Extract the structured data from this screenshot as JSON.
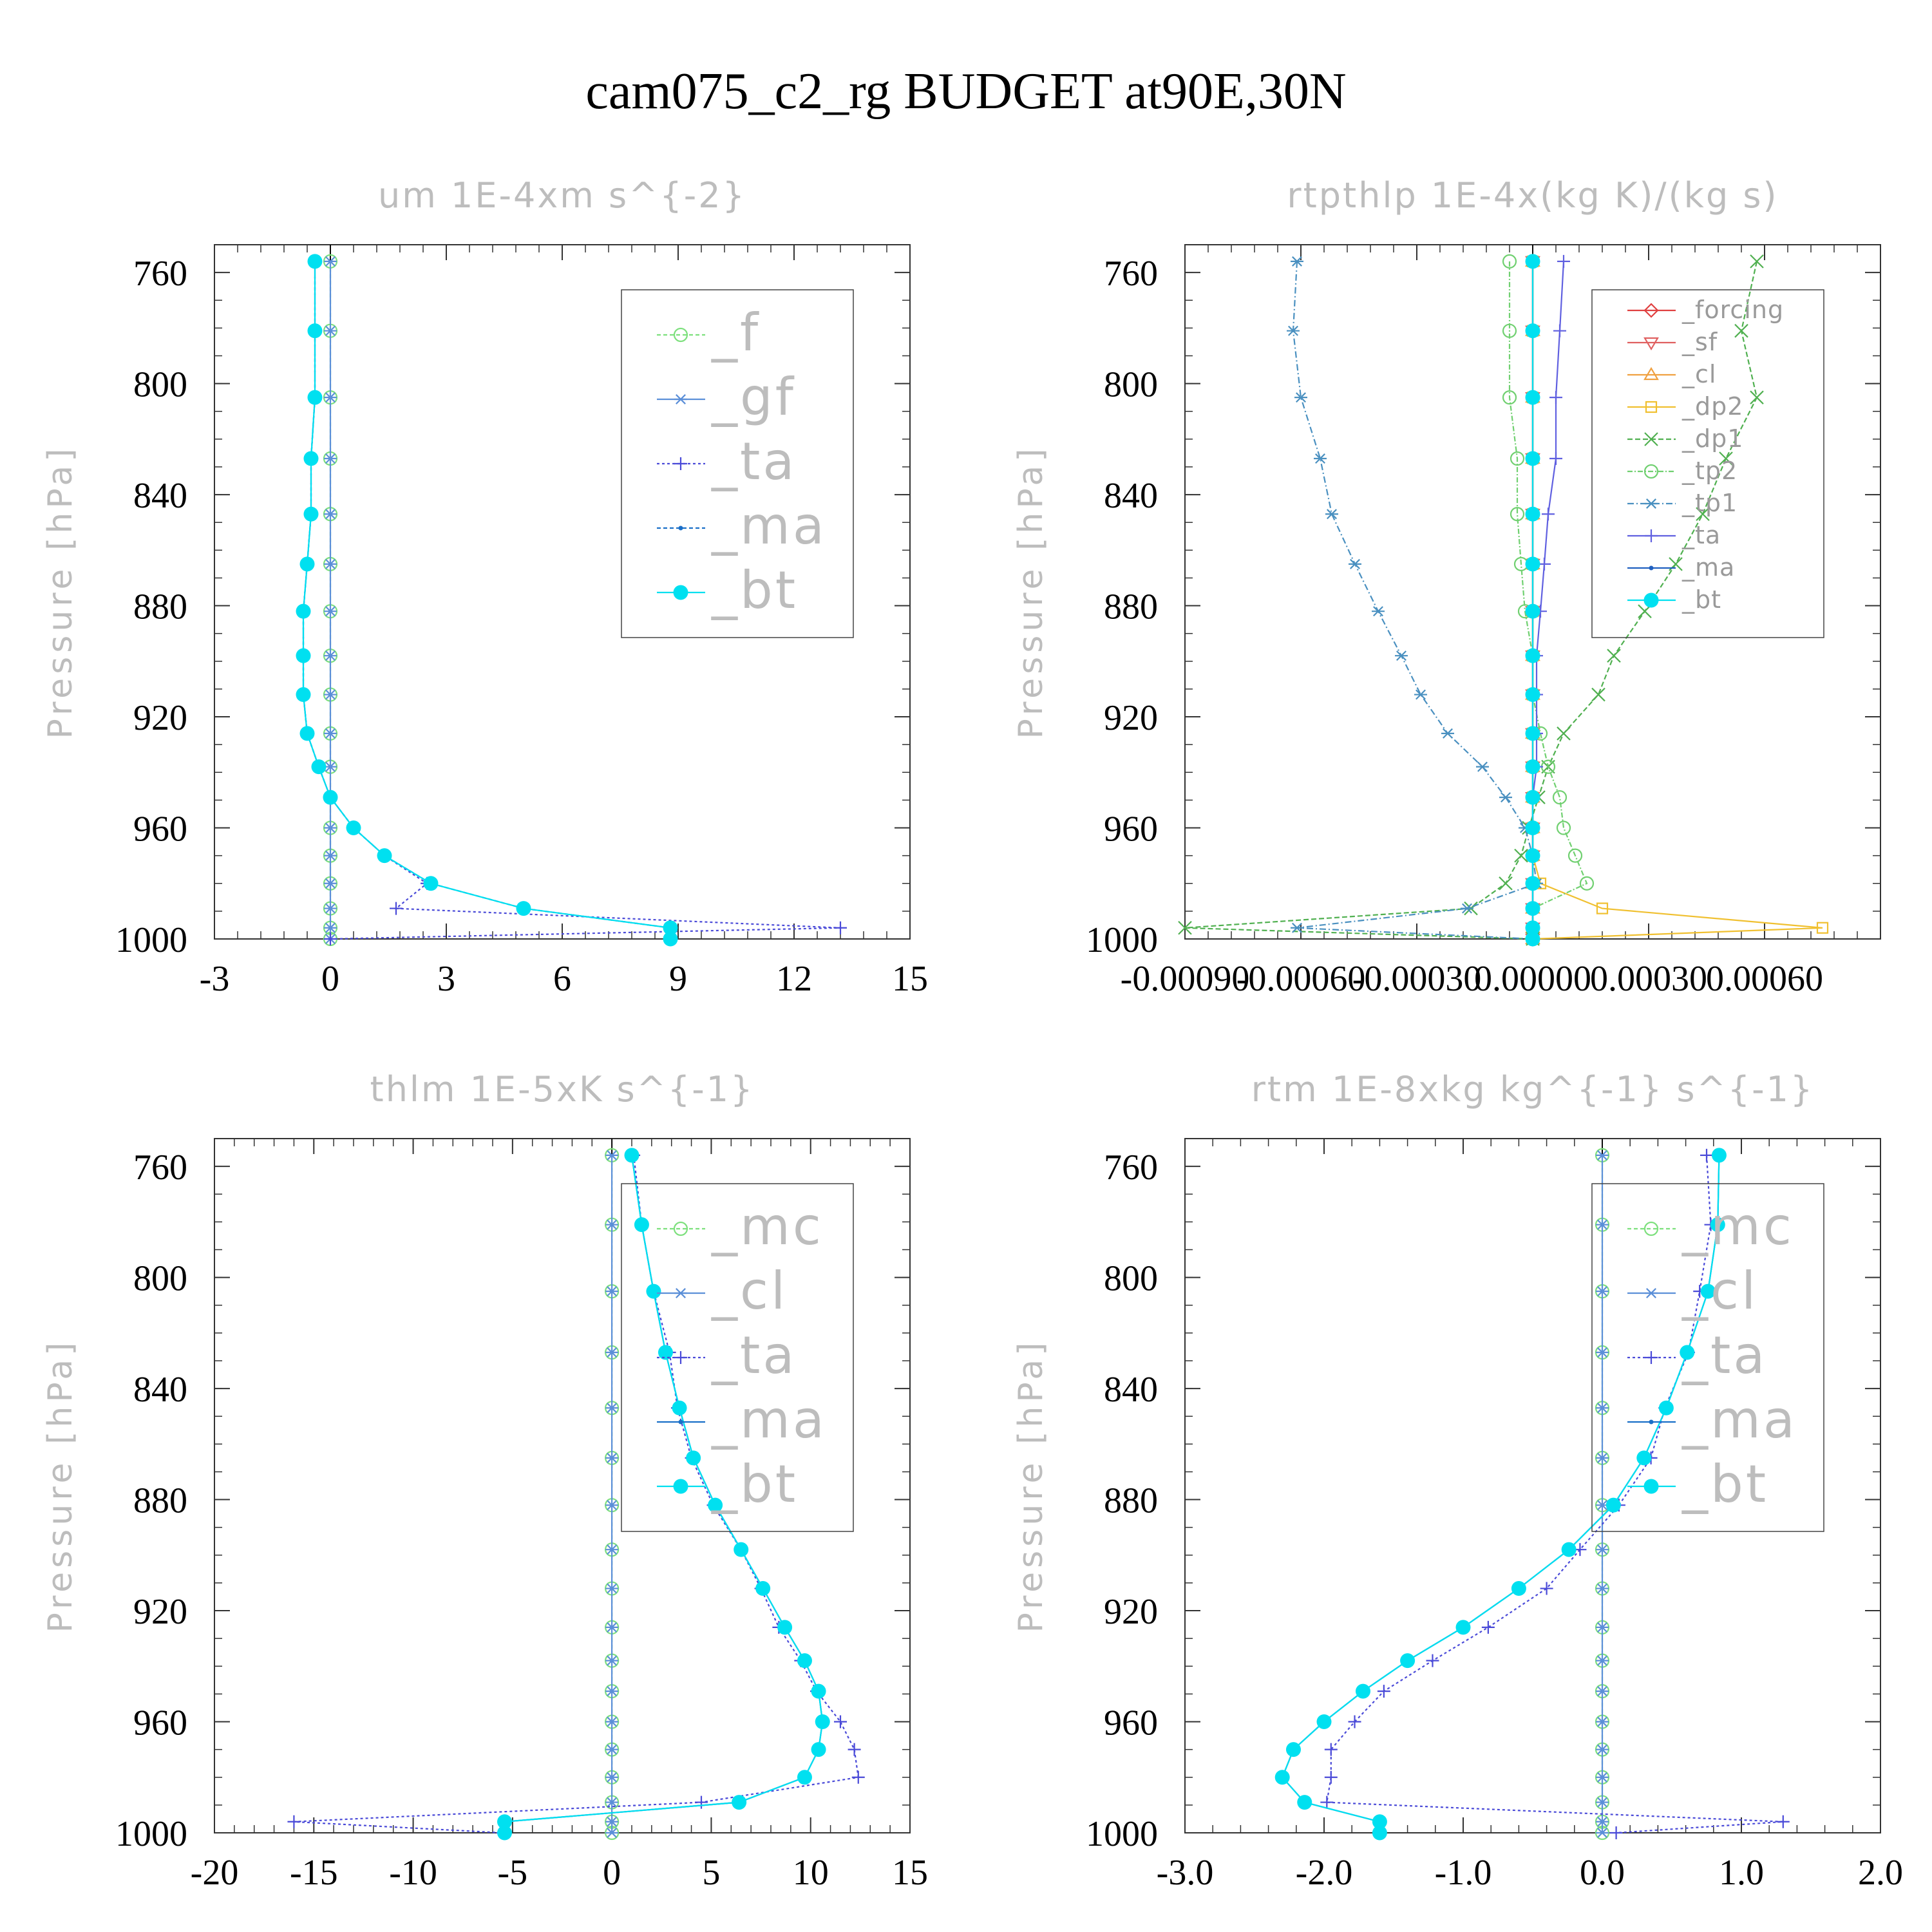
{
  "figure_title": "cam075_c2_rg  BUDGET at90E,30N",
  "chart_data": [
    {
      "type": "line",
      "title": "um   1E-4xm s^{-2}",
      "ylabel": "Pressure [hPa]",
      "xlabel": "",
      "xlim": [
        -3,
        15
      ],
      "ylim": [
        1000,
        750
      ],
      "xticks": [
        "-3",
        "0",
        "3",
        "6",
        "9",
        "12",
        "15"
      ],
      "xtick_values": [
        -3,
        0,
        3,
        6,
        9,
        12,
        15
      ],
      "yticks": [
        "760",
        "800",
        "840",
        "880",
        "920",
        "960",
        "1000"
      ],
      "ytick_values": [
        760,
        800,
        840,
        880,
        920,
        960,
        1000
      ],
      "grid": false,
      "legend_position": "top-right",
      "legend_font": "large",
      "pressure": [
        756,
        781,
        805,
        827,
        847,
        865,
        882,
        898,
        912,
        926,
        938,
        949,
        960,
        970,
        980,
        989,
        996,
        1000
      ],
      "series": [
        {
          "name": "_f",
          "color": "#7de07d",
          "marker": "circle-open",
          "dash": "6,4",
          "values": [
            0,
            0,
            0,
            0,
            0,
            0,
            0,
            0,
            0,
            0,
            0,
            0,
            0,
            0,
            0,
            0,
            0,
            0
          ]
        },
        {
          "name": "_gf",
          "color": "#5b8fd8",
          "marker": "asterisk",
          "dash": "",
          "values": [
            0,
            0,
            0,
            0,
            0,
            0,
            0,
            0,
            0,
            0,
            0,
            0,
            0,
            0,
            0,
            0,
            0,
            0
          ]
        },
        {
          "name": "_ta",
          "color": "#4a4ad8",
          "marker": "plus",
          "dash": "4,4",
          "values": [
            -0.4,
            -0.4,
            -0.4,
            -0.5,
            -0.5,
            -0.6,
            -0.7,
            -0.7,
            -0.7,
            -0.6,
            -0.3,
            0,
            0.6,
            1.4,
            2.5,
            1.7,
            13.2,
            0
          ]
        },
        {
          "name": "_ma",
          "color": "#1a6fc8",
          "marker": "dot",
          "dash": "6,4",
          "values": [
            -0.4,
            -0.4,
            -0.4,
            -0.5,
            -0.5,
            -0.6,
            -0.7,
            -0.7,
            -0.7,
            -0.6,
            -0.3,
            0,
            0.6,
            1.4,
            2.6,
            5.0,
            8.8,
            8.8
          ]
        },
        {
          "name": "_bt",
          "color": "#00e0f0",
          "marker": "filled-circle",
          "dash": "",
          "values": [
            -0.4,
            -0.4,
            -0.4,
            -0.5,
            -0.5,
            -0.6,
            -0.7,
            -0.7,
            -0.7,
            -0.6,
            -0.3,
            0,
            0.6,
            1.4,
            2.6,
            5.0,
            8.8,
            8.8
          ]
        }
      ]
    },
    {
      "type": "line",
      "title": "rtpthlp   1E-4x(kg K)/(kg s)",
      "ylabel": "Pressure [hPa]",
      "xlabel": "",
      "xlim": [
        -0.0009,
        0.0009
      ],
      "ylim": [
        1000,
        750
      ],
      "xticks": [
        "-0.00090",
        "-0.00060",
        "-0.00030",
        "0.00000",
        "0.00030",
        "0.00060"
      ],
      "xtick_values": [
        -0.0009,
        -0.0006,
        -0.0003,
        0,
        0.0003,
        0.0006
      ],
      "yticks": [
        "760",
        "800",
        "840",
        "880",
        "920",
        "960",
        "1000"
      ],
      "ytick_values": [
        760,
        800,
        840,
        880,
        920,
        960,
        1000
      ],
      "grid": false,
      "legend_position": "top-right",
      "legend_font": "small",
      "pressure": [
        756,
        781,
        805,
        827,
        847,
        865,
        882,
        898,
        912,
        926,
        938,
        949,
        960,
        970,
        980,
        989,
        996,
        1000
      ],
      "series": [
        {
          "name": "_forcing",
          "color": "#e04040",
          "marker": "diamond-open",
          "dash": "",
          "values": [
            0,
            0,
            0,
            0,
            0,
            0,
            0,
            0,
            0,
            0,
            0,
            0,
            0,
            0,
            0,
            0,
            0,
            0
          ]
        },
        {
          "name": "_sf",
          "color": "#e06060",
          "marker": "triangle-down",
          "dash": "",
          "values": [
            0,
            0,
            0,
            0,
            0,
            0,
            0,
            0,
            0,
            0,
            0,
            0,
            0,
            0,
            0,
            0,
            0,
            0
          ]
        },
        {
          "name": "_cl",
          "color": "#f0a040",
          "marker": "triangle-up",
          "dash": "",
          "values": [
            0,
            0,
            0,
            0,
            0,
            0,
            0,
            0,
            0,
            0,
            0,
            0,
            0,
            0,
            0,
            0,
            0,
            0
          ]
        },
        {
          "name": "_dp2",
          "color": "#f0c030",
          "marker": "square-open",
          "dash": "",
          "values": [
            0,
            0,
            0,
            0,
            0,
            0,
            0,
            0,
            0,
            0,
            0,
            0,
            0,
            0,
            2e-05,
            0.00018,
            0.00075,
            0
          ]
        },
        {
          "name": "_dp1",
          "color": "#50b050",
          "marker": "cross",
          "dash": "8,4",
          "values": [
            0.00058,
            0.00054,
            0.00058,
            0.0005,
            0.00044,
            0.00037,
            0.00029,
            0.00021,
            0.00017,
            8e-05,
            4e-05,
            1.5e-05,
            -1e-05,
            -3e-05,
            -7e-05,
            -0.00016,
            -0.0009,
            0
          ]
        },
        {
          "name": "_tp2",
          "color": "#70d070",
          "marker": "circle-open",
          "dash": "8,3,2,3",
          "values": [
            -6e-05,
            -6e-05,
            -6e-05,
            -4e-05,
            -4e-05,
            -3e-05,
            -2e-05,
            0,
            0,
            2e-05,
            4e-05,
            7e-05,
            8e-05,
            0.00011,
            0.00014,
            0,
            0,
            0
          ]
        },
        {
          "name": "_tp1",
          "color": "#4a90c0",
          "marker": "asterisk",
          "dash": "10,4,2,4",
          "values": [
            -0.00061,
            -0.00062,
            -0.0006,
            -0.00055,
            -0.00052,
            -0.00046,
            -0.0004,
            -0.00034,
            -0.00029,
            -0.00022,
            -0.00013,
            -7e-05,
            -2e-05,
            0,
            1e-05,
            -0.00017,
            -0.00061,
            0
          ]
        },
        {
          "name": "_ta",
          "color": "#6060e0",
          "marker": "plus",
          "dash": "",
          "values": [
            8e-05,
            7e-05,
            6e-05,
            6e-05,
            4e-05,
            3e-05,
            2e-05,
            1e-05,
            1e-05,
            1e-05,
            1e-05,
            0,
            0,
            0,
            0,
            0,
            0,
            0
          ]
        },
        {
          "name": "_ma",
          "color": "#2060c0",
          "marker": "dot",
          "dash": "",
          "values": [
            0,
            0,
            0,
            0,
            0,
            0,
            0,
            0,
            0,
            0,
            0,
            0,
            0,
            0,
            0,
            0,
            0,
            0
          ]
        },
        {
          "name": "_bt",
          "color": "#00e0f0",
          "marker": "filled-circle",
          "dash": "",
          "values": [
            0,
            0,
            0,
            0,
            0,
            0,
            0,
            0,
            0,
            0,
            0,
            0,
            0,
            0,
            0,
            0,
            0,
            0
          ]
        }
      ]
    },
    {
      "type": "line",
      "title": "thlm   1E-5xK s^{-1}",
      "ylabel": "Pressure [hPa]",
      "xlabel": "",
      "xlim": [
        -20,
        15
      ],
      "ylim": [
        1000,
        750
      ],
      "xticks": [
        "-20",
        "-15",
        "-10",
        "-5",
        "0",
        "5",
        "10",
        "15"
      ],
      "xtick_values": [
        -20,
        -15,
        -10,
        -5,
        0,
        5,
        10,
        15
      ],
      "yticks": [
        "760",
        "800",
        "840",
        "880",
        "920",
        "960",
        "1000"
      ],
      "ytick_values": [
        760,
        800,
        840,
        880,
        920,
        960,
        1000
      ],
      "grid": false,
      "legend_position": "top-right",
      "legend_font": "large",
      "pressure": [
        756,
        781,
        805,
        827,
        847,
        865,
        882,
        898,
        912,
        926,
        938,
        949,
        960,
        970,
        980,
        989,
        996,
        1000
      ],
      "series": [
        {
          "name": "_mc",
          "color": "#7de07d",
          "marker": "circle-open",
          "dash": "6,4",
          "values": [
            0,
            0,
            0,
            0,
            0,
            0,
            0,
            0,
            0,
            0,
            0,
            0,
            0,
            0,
            0,
            0,
            0,
            0
          ]
        },
        {
          "name": "_cl",
          "color": "#5b8fd8",
          "marker": "asterisk",
          "dash": "",
          "values": [
            0,
            0,
            0,
            0,
            0,
            0,
            0,
            0,
            0,
            0,
            0,
            0,
            0,
            0,
            0,
            0,
            0,
            0
          ]
        },
        {
          "name": "_ta",
          "color": "#4a4ad8",
          "marker": "plus",
          "dash": "4,4",
          "values": [
            1.1,
            1.5,
            2.1,
            2.9,
            3.3,
            4.0,
            5.1,
            6.5,
            7.5,
            8.4,
            9.5,
            10.3,
            11.5,
            12.2,
            12.4,
            4.5,
            -16.0,
            -5.5
          ]
        },
        {
          "name": "_ma",
          "color": "#1a6fc8",
          "marker": "dot",
          "dash": "",
          "values": [
            1.0,
            1.5,
            2.1,
            2.7,
            3.4,
            4.1,
            5.2,
            6.5,
            7.6,
            8.7,
            9.7,
            10.4,
            10.6,
            10.4,
            9.7,
            6.4,
            -5.4,
            -5.4
          ]
        },
        {
          "name": "_bt",
          "color": "#00e0f0",
          "marker": "filled-circle",
          "dash": "",
          "values": [
            1.0,
            1.5,
            2.1,
            2.7,
            3.4,
            4.1,
            5.2,
            6.5,
            7.6,
            8.7,
            9.7,
            10.4,
            10.6,
            10.4,
            9.7,
            6.4,
            -5.4,
            -5.4
          ]
        }
      ]
    },
    {
      "type": "line",
      "title": "rtm   1E-8xkg kg^{-1} s^{-1}",
      "ylabel": "Pressure [hPa]",
      "xlabel": "",
      "xlim": [
        -3,
        2
      ],
      "ylim": [
        1000,
        750
      ],
      "xticks": [
        "-3.0",
        "-2.0",
        "-1.0",
        "0.0",
        "1.0",
        "2.0"
      ],
      "xtick_values": [
        -3,
        -2,
        -1,
        0,
        1,
        2
      ],
      "yticks": [
        "760",
        "800",
        "840",
        "880",
        "920",
        "960",
        "1000"
      ],
      "ytick_values": [
        760,
        800,
        840,
        880,
        920,
        960,
        1000
      ],
      "grid": false,
      "legend_position": "top-right",
      "legend_font": "large",
      "pressure": [
        756,
        781,
        805,
        827,
        847,
        865,
        882,
        898,
        912,
        926,
        938,
        949,
        960,
        970,
        980,
        989,
        996,
        1000
      ],
      "series": [
        {
          "name": "_mc",
          "color": "#7de07d",
          "marker": "circle-open",
          "dash": "6,4",
          "values": [
            0,
            0,
            0,
            0,
            0,
            0,
            0,
            0,
            0,
            0,
            0,
            0,
            0,
            0,
            0,
            0,
            0,
            0
          ]
        },
        {
          "name": "_cl",
          "color": "#5b8fd8",
          "marker": "asterisk",
          "dash": "",
          "values": [
            0,
            0,
            0,
            0,
            0,
            0,
            0,
            0,
            0,
            0,
            0,
            0,
            0,
            0,
            0,
            0,
            0,
            0
          ]
        },
        {
          "name": "_ta",
          "color": "#4a4ad8",
          "marker": "plus",
          "dash": "4,4",
          "values": [
            0.75,
            0.78,
            0.7,
            0.62,
            0.45,
            0.35,
            0.12,
            -0.16,
            -0.4,
            -0.82,
            -1.22,
            -1.57,
            -1.78,
            -1.95,
            -1.95,
            -1.98,
            1.3,
            0.1
          ]
        },
        {
          "name": "_ma",
          "color": "#1a6fc8",
          "marker": "dot",
          "dash": "",
          "values": [
            0.84,
            0.83,
            0.76,
            0.61,
            0.46,
            0.3,
            0.08,
            -0.24,
            -0.6,
            -1.0,
            -1.4,
            -1.72,
            -2.0,
            -2.22,
            -2.3,
            -2.14,
            -1.6,
            -1.6
          ]
        },
        {
          "name": "_bt",
          "color": "#00e0f0",
          "marker": "filled-circle",
          "dash": "",
          "values": [
            0.84,
            0.83,
            0.76,
            0.61,
            0.46,
            0.3,
            0.08,
            -0.24,
            -0.6,
            -1.0,
            -1.4,
            -1.72,
            -2.0,
            -2.22,
            -2.3,
            -2.14,
            -1.6,
            -1.6
          ]
        }
      ]
    }
  ]
}
